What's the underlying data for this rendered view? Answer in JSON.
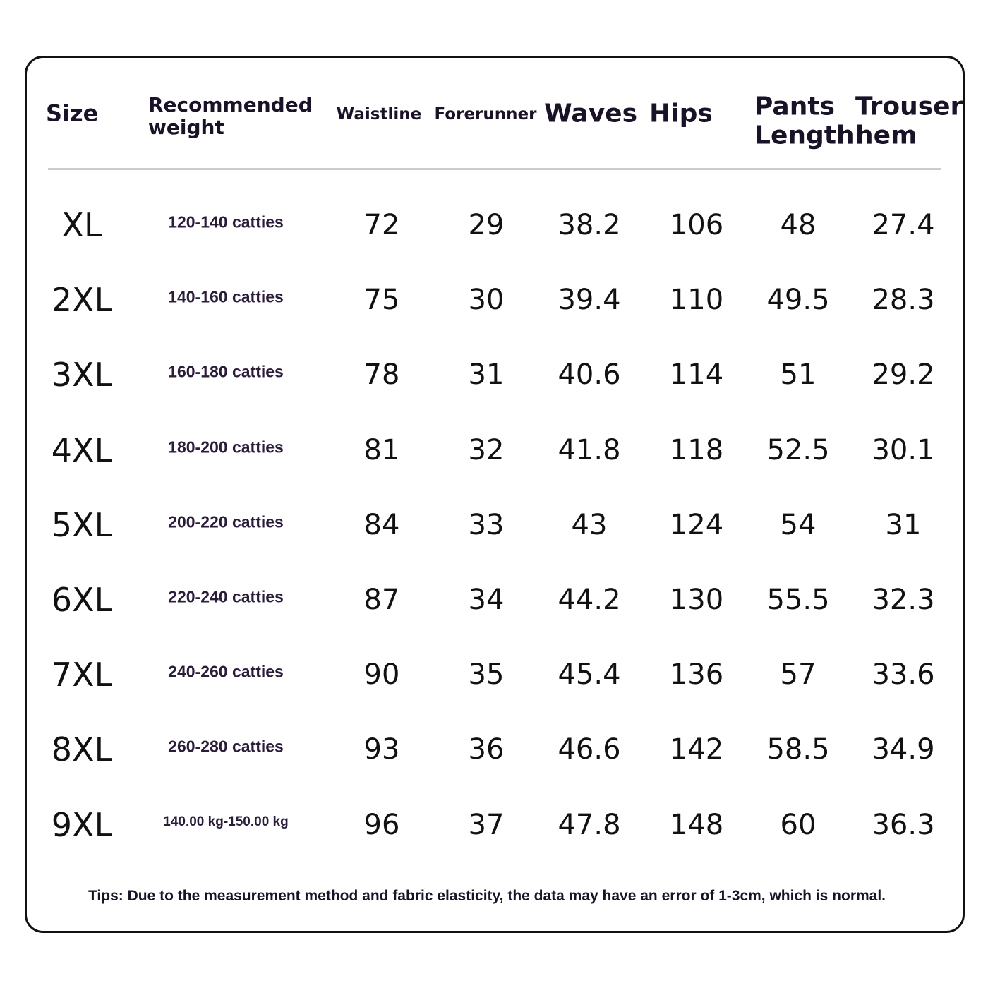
{
  "table": {
    "header": [
      "Size",
      "Recommended weight",
      "Waistline",
      "Forerunner",
      "Waves",
      "Hips",
      "Pants Length",
      "Trouser hem"
    ],
    "rows": [
      [
        "XL",
        "120-140 catties",
        "72",
        "29",
        "38.2",
        "106",
        "48",
        "27.4"
      ],
      [
        "2XL",
        "140-160 catties",
        "75",
        "30",
        "39.4",
        "110",
        "49.5",
        "28.3"
      ],
      [
        "3XL",
        "160-180 catties",
        "78",
        "31",
        "40.6",
        "114",
        "51",
        "29.2"
      ],
      [
        "4XL",
        "180-200 catties",
        "81",
        "32",
        "41.8",
        "118",
        "52.5",
        "30.1"
      ],
      [
        "5XL",
        "200-220 catties",
        "84",
        "33",
        "43",
        "124",
        "54",
        "31"
      ],
      [
        "6XL",
        "220-240 catties",
        "87",
        "34",
        "44.2",
        "130",
        "55.5",
        "32.3"
      ],
      [
        "7XL",
        "240-260 catties",
        "90",
        "35",
        "45.4",
        "136",
        "57",
        "33.6"
      ],
      [
        "8XL",
        "260-280 catties",
        "93",
        "36",
        "46.6",
        "142",
        "58.5",
        "34.9"
      ],
      [
        "9XL",
        "140.00 kg-150.00 kg",
        "96",
        "37",
        "47.8",
        "148",
        "60",
        "36.3"
      ]
    ]
  },
  "tips": "Tips: Due to the measurement method and fabric elasticity, the data may have an error of 1-3cm, which is normal."
}
